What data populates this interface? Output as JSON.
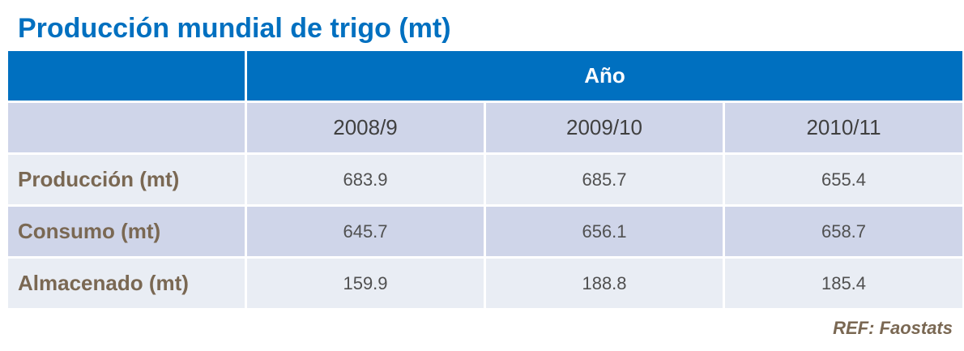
{
  "title": "Producción mundial de trigo (mt)",
  "table": {
    "header": "Año",
    "columns": [
      "2008/9",
      "2009/10",
      "2010/11"
    ],
    "rows": [
      {
        "label": "Producción (mt)",
        "values": [
          683.9,
          685.7,
          655.4
        ]
      },
      {
        "label": "Consumo (mt)",
        "values": [
          645.7,
          656.1,
          658.7
        ]
      },
      {
        "label": "Almacenado (mt)",
        "values": [
          159.9,
          188.8,
          185.4
        ]
      }
    ]
  },
  "reference": "REF: Faostats"
}
